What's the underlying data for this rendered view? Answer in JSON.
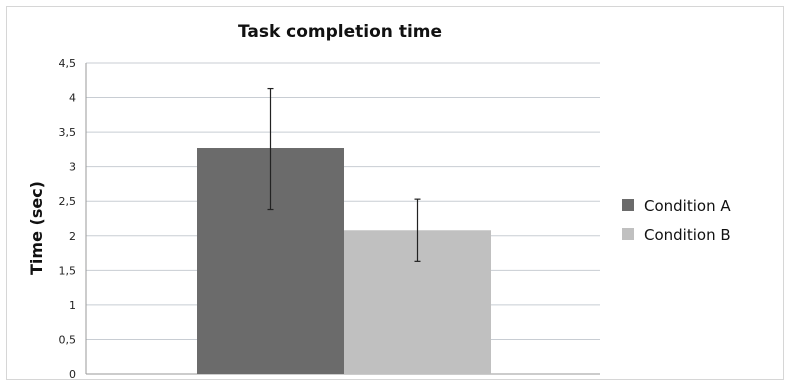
{
  "chart_data": {
    "type": "bar",
    "title": "Task completion time",
    "ylabel": "Time (sec)",
    "xlabel": "",
    "ylim": [
      0,
      4.5
    ],
    "yticks": [
      "0",
      "0,5",
      "1",
      "1,5",
      "2",
      "2,5",
      "3",
      "3,5",
      "4",
      "4,5"
    ],
    "grid": true,
    "legend_position": "right",
    "series": [
      {
        "name": "Condition A",
        "value": 3.27,
        "error_low": 2.38,
        "error_high": 4.13,
        "color": "#6b6b6b"
      },
      {
        "name": "Condition B",
        "value": 2.08,
        "error_low": 1.63,
        "error_high": 2.53,
        "color": "#c0c0c0"
      }
    ]
  }
}
